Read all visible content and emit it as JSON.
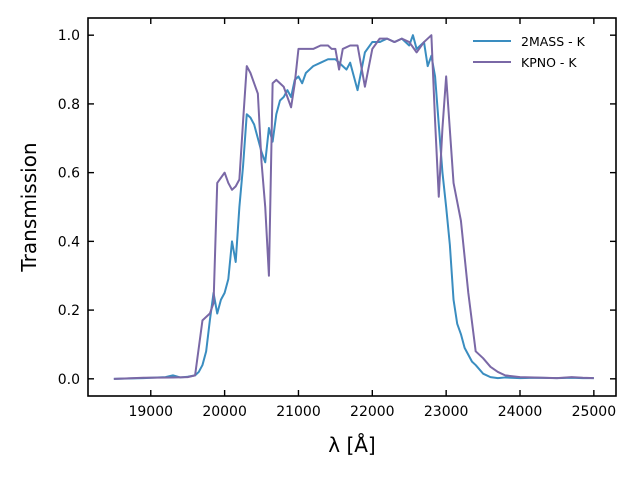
{
  "chart_data": {
    "type": "line",
    "title": "",
    "xlabel": "λ [Å]",
    "ylabel": "Transmission",
    "xlim": [
      18150,
      25300
    ],
    "ylim": [
      -0.05,
      1.05
    ],
    "xticks": [
      19000,
      20000,
      21000,
      22000,
      23000,
      24000,
      25000
    ],
    "yticks": [
      0.0,
      0.2,
      0.4,
      0.6,
      0.8,
      1.0
    ],
    "xtick_labels": [
      "19000",
      "20000",
      "21000",
      "22000",
      "23000",
      "24000",
      "25000"
    ],
    "ytick_labels": [
      "0.0",
      "0.2",
      "0.4",
      "0.6",
      "0.8",
      "1.0"
    ],
    "grid": false,
    "legend": "top-right",
    "series": [
      {
        "name": "2MASS - K",
        "color": "#3a8dc0",
        "x": [
          18500,
          18900,
          19200,
          19300,
          19400,
          19500,
          19600,
          19650,
          19700,
          19750,
          19800,
          19850,
          19900,
          19950,
          20000,
          20050,
          20100,
          20150,
          20200,
          20250,
          20300,
          20350,
          20400,
          20450,
          20500,
          20550,
          20600,
          20650,
          20700,
          20750,
          20800,
          20850,
          20900,
          20950,
          21000,
          21050,
          21100,
          21150,
          21200,
          21300,
          21400,
          21500,
          21550,
          21600,
          21650,
          21700,
          21800,
          21900,
          22000,
          22100,
          22200,
          22300,
          22400,
          22500,
          22550,
          22600,
          22700,
          22750,
          22800,
          22850,
          22900,
          22950,
          23000,
          23050,
          23100,
          23150,
          23200,
          23250,
          23300,
          23350,
          23400,
          23500,
          23600,
          23700,
          23800,
          24000,
          24200,
          24500,
          24700,
          24850,
          25000
        ],
        "y": [
          0.0,
          0.002,
          0.005,
          0.01,
          0.004,
          0.006,
          0.01,
          0.02,
          0.04,
          0.08,
          0.17,
          0.25,
          0.19,
          0.23,
          0.25,
          0.29,
          0.4,
          0.34,
          0.5,
          0.62,
          0.77,
          0.76,
          0.74,
          0.7,
          0.66,
          0.63,
          0.73,
          0.69,
          0.77,
          0.81,
          0.82,
          0.84,
          0.82,
          0.87,
          0.88,
          0.86,
          0.89,
          0.9,
          0.91,
          0.92,
          0.93,
          0.93,
          0.92,
          0.91,
          0.9,
          0.92,
          0.84,
          0.95,
          0.98,
          0.98,
          0.99,
          0.98,
          0.99,
          0.97,
          1.0,
          0.96,
          0.98,
          0.91,
          0.94,
          0.88,
          0.74,
          0.6,
          0.5,
          0.39,
          0.23,
          0.16,
          0.13,
          0.09,
          0.07,
          0.05,
          0.04,
          0.015,
          0.005,
          0.002,
          0.004,
          0.002,
          0.003,
          0.002,
          0.003,
          0.002,
          0.002
        ]
      },
      {
        "name": "KPNO - K",
        "color": "#7a68a6",
        "x": [
          18500,
          18900,
          19300,
          19500,
          19600,
          19700,
          19800,
          19850,
          19900,
          20000,
          20050,
          20100,
          20150,
          20200,
          20250,
          20300,
          20350,
          20400,
          20450,
          20500,
          20550,
          20600,
          20650,
          20700,
          20800,
          20900,
          20950,
          21000,
          21100,
          21200,
          21300,
          21400,
          21450,
          21500,
          21550,
          21600,
          21700,
          21800,
          21900,
          22000,
          22100,
          22200,
          22300,
          22400,
          22500,
          22600,
          22700,
          22800,
          22850,
          22900,
          22950,
          23000,
          23100,
          23200,
          23300,
          23400,
          23500,
          23600,
          23700,
          23800,
          24000,
          24200,
          24500,
          24700,
          24850,
          25000
        ],
        "y": [
          0.0,
          0.003,
          0.004,
          0.005,
          0.01,
          0.17,
          0.19,
          0.22,
          0.57,
          0.6,
          0.57,
          0.55,
          0.56,
          0.58,
          0.75,
          0.91,
          0.89,
          0.86,
          0.83,
          0.63,
          0.5,
          0.3,
          0.86,
          0.87,
          0.85,
          0.79,
          0.86,
          0.96,
          0.96,
          0.96,
          0.97,
          0.97,
          0.96,
          0.96,
          0.9,
          0.96,
          0.97,
          0.97,
          0.85,
          0.96,
          0.99,
          0.99,
          0.98,
          0.99,
          0.98,
          0.95,
          0.98,
          1.0,
          0.75,
          0.53,
          0.73,
          0.88,
          0.57,
          0.46,
          0.25,
          0.08,
          0.06,
          0.035,
          0.02,
          0.01,
          0.005,
          0.004,
          0.002,
          0.005,
          0.003,
          0.002
        ]
      }
    ]
  }
}
